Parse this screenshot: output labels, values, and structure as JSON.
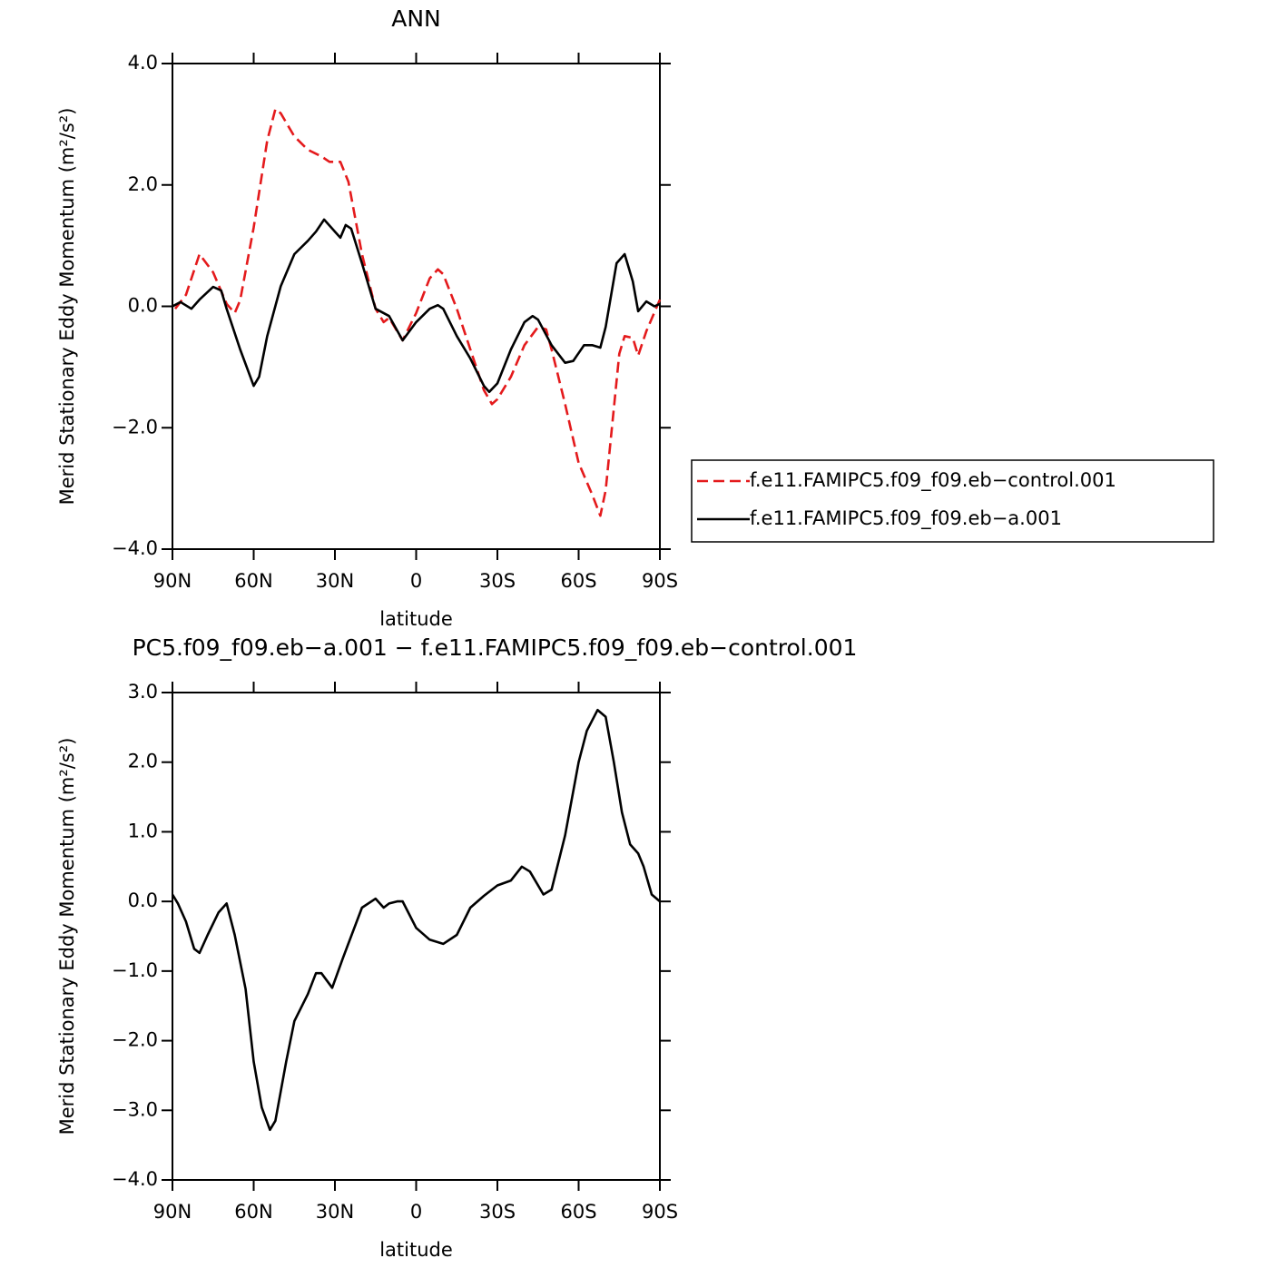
{
  "chart_data": [
    {
      "type": "line",
      "title": "ANN",
      "xlabel": "latitude",
      "ylabel": "Merid Stationary Eddy Momentum (m²/s²)",
      "xlim": [
        90,
        -90
      ],
      "xticks": [
        {
          "value": 90,
          "label": "90N"
        },
        {
          "value": 60,
          "label": "60N"
        },
        {
          "value": 30,
          "label": "30N"
        },
        0,
        {
          "value": -30,
          "label": "30S"
        },
        {
          "value": -60,
          "label": "60S"
        },
        {
          "value": -90,
          "label": "90S"
        }
      ],
      "ylim": [
        -4,
        4
      ],
      "yticks": [
        {
          "value": 4,
          "label": "4.0"
        },
        {
          "value": 2,
          "label": "2.0"
        },
        {
          "value": 0,
          "label": "0.0"
        },
        {
          "value": -2,
          "label": "−2.0"
        },
        {
          "value": -4,
          "label": "−4.0"
        }
      ],
      "series": [
        {
          "name": "f.e11.FAMIPC5.f09_f09.eb−control.001",
          "color": "#e41a1c",
          "dashed": true,
          "x": [
            89,
            85,
            80,
            75,
            70,
            67,
            65,
            60,
            55,
            52,
            50,
            45,
            40,
            35,
            32,
            28,
            25,
            20,
            15,
            12,
            10,
            5,
            0,
            -5,
            -8,
            -10,
            -15,
            -20,
            -25,
            -28,
            -30,
            -35,
            -40,
            -45,
            -48,
            -50,
            -55,
            -60,
            -65,
            -68,
            -70,
            -73,
            -75,
            -77,
            -80,
            -82,
            -85,
            -90
          ],
          "values": [
            -0.04,
            0.19,
            0.86,
            0.56,
            0.04,
            -0.11,
            0.1,
            1.3,
            2.73,
            3.25,
            3.18,
            2.8,
            2.58,
            2.47,
            2.38,
            2.38,
            2.05,
            0.86,
            -0.04,
            -0.26,
            -0.19,
            -0.56,
            -0.11,
            0.46,
            0.61,
            0.53,
            -0.04,
            -0.71,
            -1.38,
            -1.61,
            -1.53,
            -1.16,
            -0.64,
            -0.34,
            -0.38,
            -0.71,
            -1.61,
            -2.58,
            -3.1,
            -3.45,
            -3.03,
            -1.68,
            -0.78,
            -0.49,
            -0.52,
            -0.81,
            -0.41,
            0.11
          ]
        },
        {
          "name": "f.e11.FAMIPC5.f09_f09.eb−a.001",
          "color": "#000000",
          "dashed": false,
          "x": [
            90,
            87,
            83,
            80,
            75,
            72,
            70,
            65,
            60,
            58,
            55,
            50,
            45,
            40,
            37,
            34,
            30,
            28,
            26,
            24,
            20,
            15,
            10,
            5,
            0,
            -5,
            -8,
            -10,
            -15,
            -20,
            -25,
            -27,
            -30,
            -35,
            -40,
            -43,
            -45,
            -50,
            -55,
            -58,
            -62,
            -65,
            -68,
            -70,
            -74,
            -77,
            -80,
            -82,
            -85,
            -88,
            -90
          ],
          "values": [
            0,
            0.07,
            -0.04,
            0.11,
            0.32,
            0.26,
            -0.04,
            -0.71,
            -1.31,
            -1.16,
            -0.49,
            0.33,
            0.86,
            1.08,
            1.23,
            1.43,
            1.23,
            1.13,
            1.34,
            1.28,
            0.71,
            -0.04,
            -0.16,
            -0.56,
            -0.26,
            -0.04,
            0.02,
            -0.04,
            -0.49,
            -0.86,
            -1.31,
            -1.41,
            -1.27,
            -0.71,
            -0.26,
            -0.16,
            -0.22,
            -0.64,
            -0.93,
            -0.9,
            -0.64,
            -0.64,
            -0.68,
            -0.34,
            0.71,
            0.86,
            0.41,
            -0.08,
            0.08,
            0,
            0.04
          ]
        }
      ]
    },
    {
      "type": "line",
      "title": "PC5.f09_f09.eb−a.001 − f.e11.FAMIPC5.f09_f09.eb−control.001",
      "xlabel": "latitude",
      "ylabel": "Merid Stationary Eddy Momentum (m²/s²)",
      "xlim": [
        90,
        -90
      ],
      "xticks": [
        {
          "value": 90,
          "label": "90N"
        },
        {
          "value": 60,
          "label": "60N"
        },
        {
          "value": 30,
          "label": "30N"
        },
        0,
        {
          "value": -30,
          "label": "30S"
        },
        {
          "value": -60,
          "label": "60S"
        },
        {
          "value": -90,
          "label": "90S"
        }
      ],
      "ylim": [
        -4,
        3
      ],
      "yticks": [
        {
          "value": 3,
          "label": "3.0"
        },
        {
          "value": 2,
          "label": "2.0"
        },
        {
          "value": 1,
          "label": "1.0"
        },
        {
          "value": 0,
          "label": "0.0"
        },
        {
          "value": -1,
          "label": "−1.0"
        },
        {
          "value": -2,
          "label": "−2.0"
        },
        {
          "value": -3,
          "label": "−3.0"
        },
        {
          "value": -4,
          "label": "−4.0"
        }
      ],
      "series": [
        {
          "color": "#000000",
          "dashed": false,
          "x": [
            90,
            88,
            85,
            82,
            80,
            77,
            73,
            70,
            67,
            63,
            60,
            57,
            54,
            52,
            48,
            45,
            40,
            37,
            35,
            31,
            27,
            20,
            15,
            12,
            10,
            7,
            5,
            0,
            -5,
            -10,
            -15,
            -20,
            -25,
            -30,
            -35,
            -39,
            -42,
            -47,
            -50,
            -55,
            -60,
            -63,
            -67,
            -70,
            -73,
            -76,
            -79,
            -82,
            -84,
            -87,
            -90
          ],
          "values": [
            0.1,
            -0.03,
            -0.29,
            -0.68,
            -0.74,
            -0.48,
            -0.16,
            -0.03,
            -0.48,
            -1.26,
            -2.3,
            -2.96,
            -3.28,
            -3.15,
            -2.3,
            -1.72,
            -1.33,
            -1.03,
            -1.03,
            -1.24,
            -0.81,
            -0.09,
            0.04,
            -0.09,
            -0.03,
            0,
            0,
            -0.38,
            -0.55,
            -0.61,
            -0.48,
            -0.09,
            0.08,
            0.23,
            0.3,
            0.5,
            0.43,
            0.1,
            0.17,
            0.95,
            2,
            2.45,
            2.75,
            2.65,
            2,
            1.28,
            0.82,
            0.69,
            0.5,
            0.1,
            0
          ]
        }
      ]
    }
  ]
}
